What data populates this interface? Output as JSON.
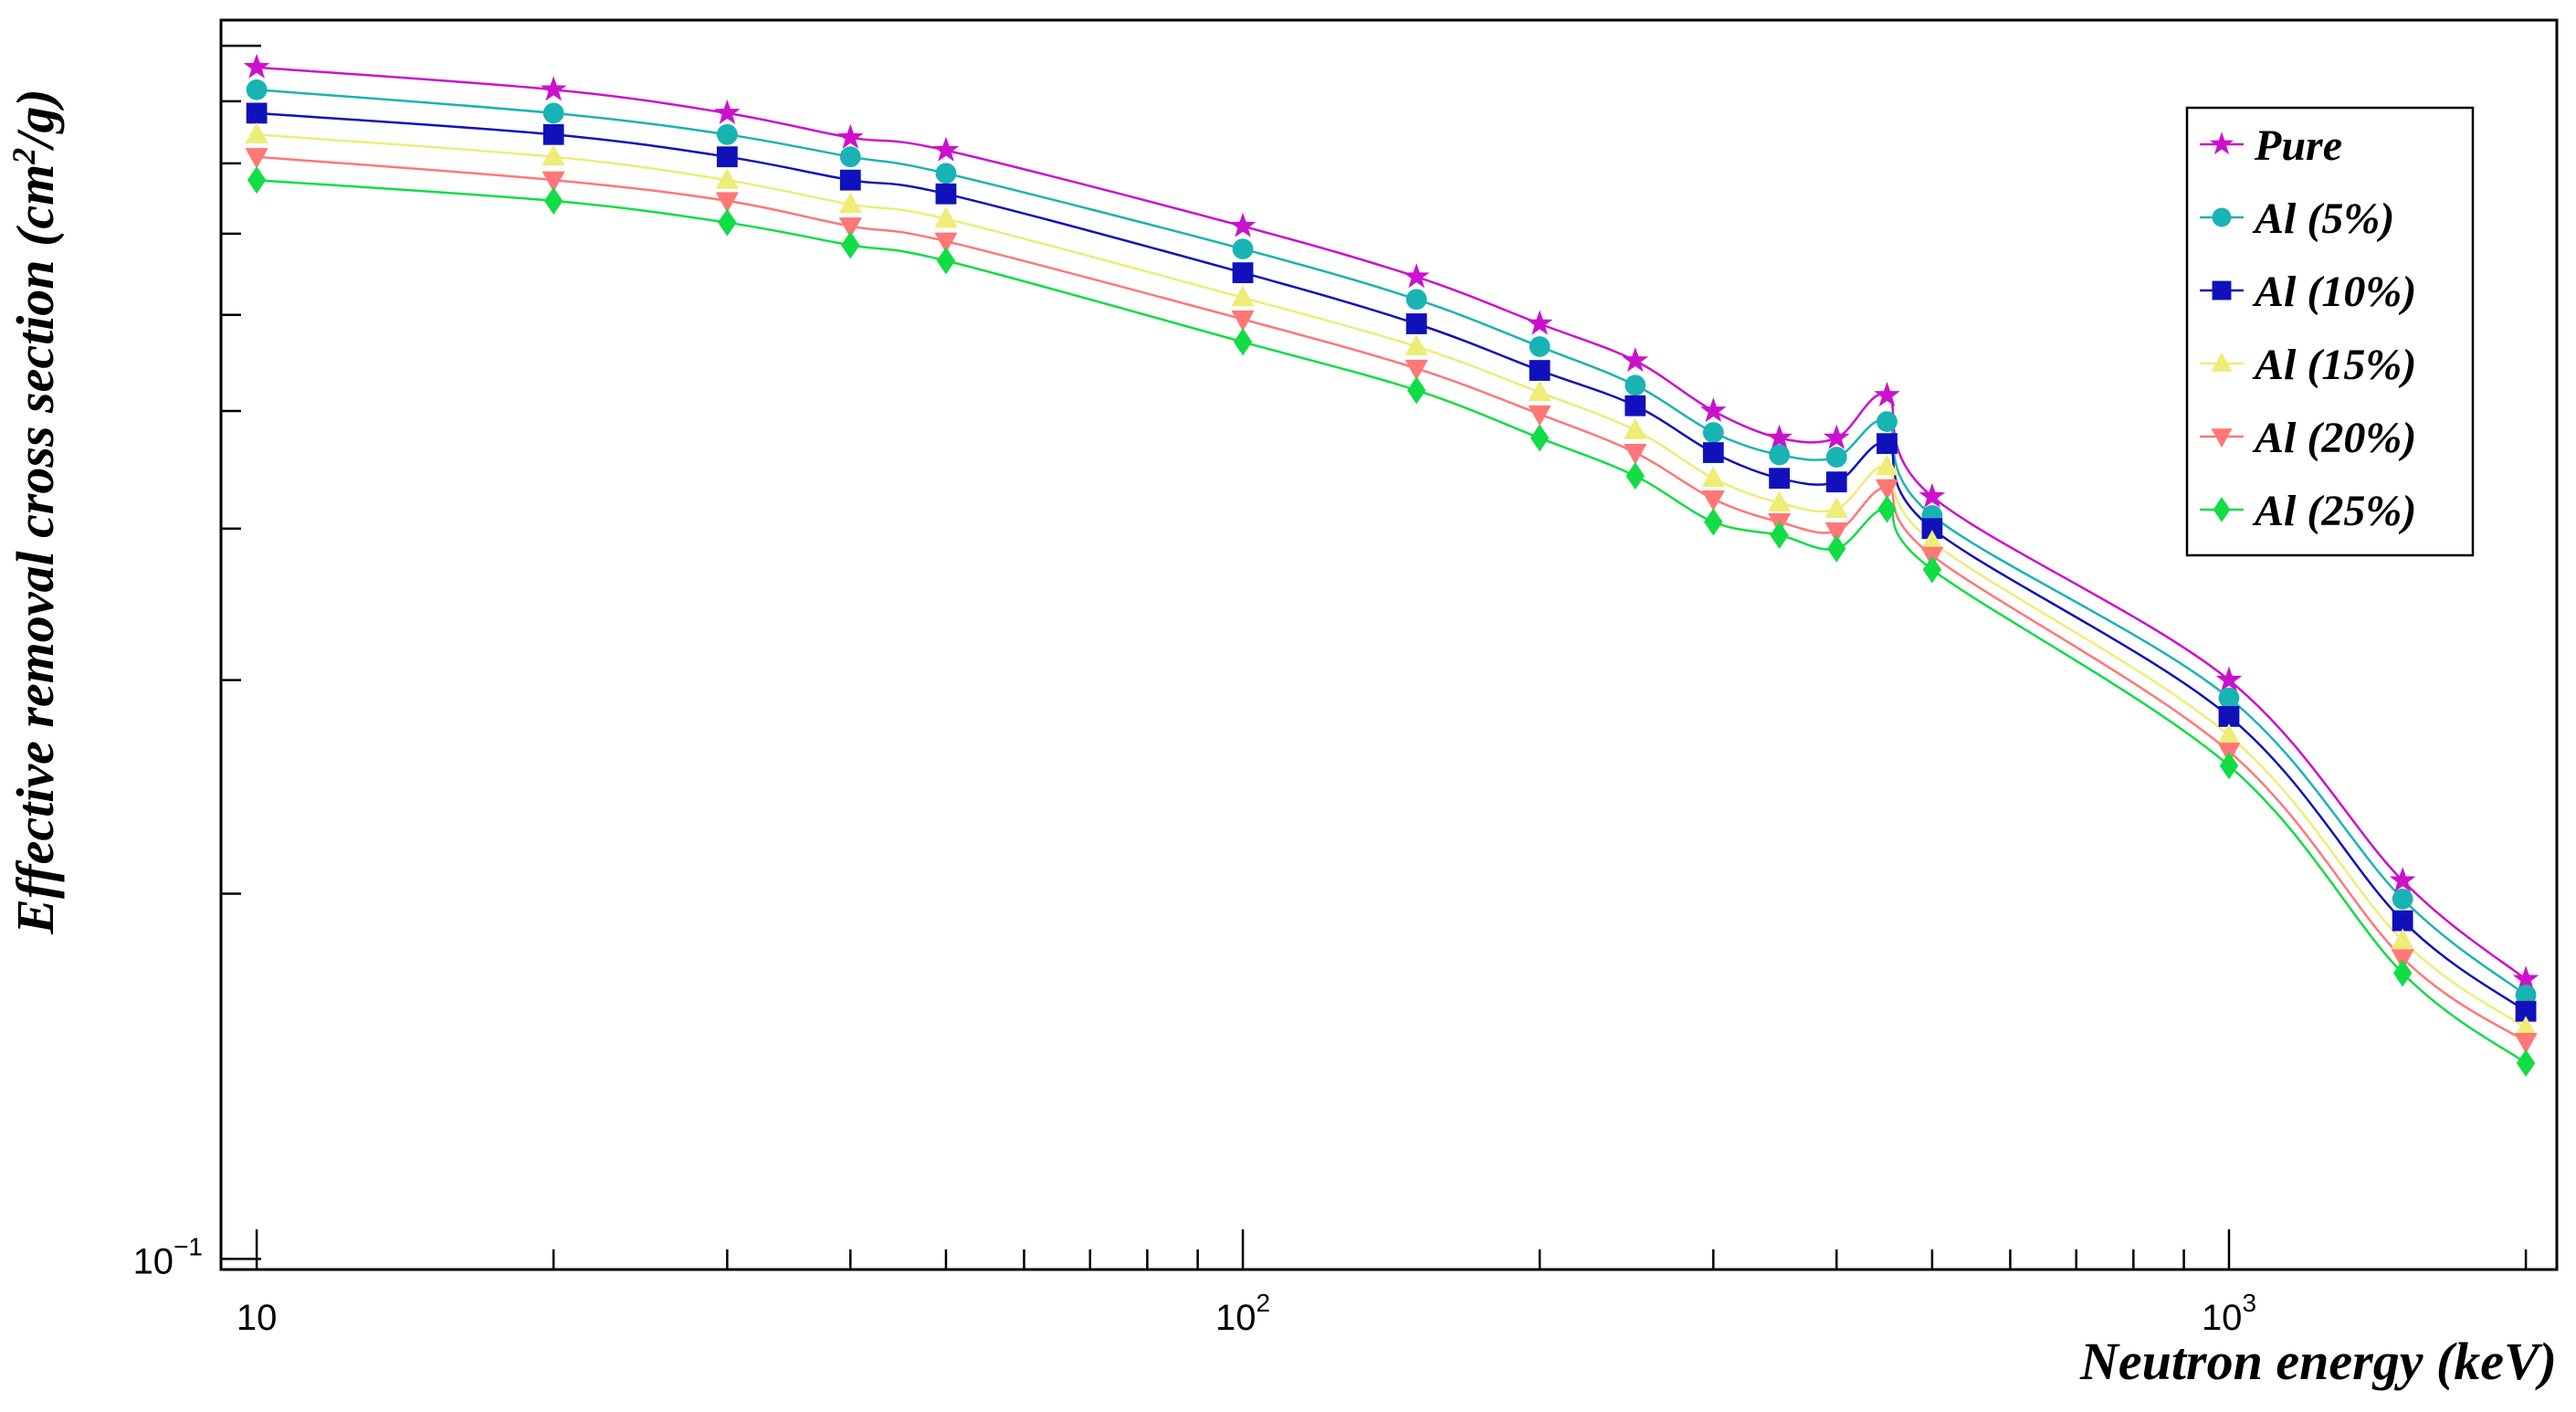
{
  "chart_data": {
    "type": "line",
    "x_scale": "log",
    "y_scale": "log",
    "xlabel": "Neutron energy (keV)",
    "ylabel": "Effective removal cross section (cm",
    "ylabel_sup": "2",
    "ylabel_tail": "/g)",
    "xlim": [
      9.2,
      2150
    ],
    "ylim": [
      0.098,
      1.05
    ],
    "x_ticks": [
      {
        "value": 10,
        "base": "10",
        "exp": ""
      },
      {
        "value": 100,
        "base": "10",
        "exp": "2"
      },
      {
        "value": 1000,
        "base": "10",
        "exp": "3"
      }
    ],
    "y_ticks": [
      {
        "value": 0.1,
        "base": "10",
        "exp": "−1"
      }
    ],
    "legend_position": "top-right",
    "x": [
      10,
      20,
      30,
      40,
      50,
      100,
      150,
      200,
      250,
      300,
      350,
      400,
      450,
      500,
      1000,
      1500,
      2000
    ],
    "series": [
      {
        "name": "Pure",
        "color": "#cc11cc",
        "marker": "star",
        "values": [
          0.96,
          0.92,
          0.88,
          0.84,
          0.82,
          0.71,
          0.645,
          0.59,
          0.55,
          0.5,
          0.475,
          0.475,
          0.515,
          0.425,
          0.3,
          0.205,
          0.17
        ]
      },
      {
        "name": "Al (5%)",
        "color": "#1ab3b3",
        "marker": "circle",
        "values": [
          0.92,
          0.88,
          0.845,
          0.81,
          0.785,
          0.68,
          0.618,
          0.565,
          0.525,
          0.48,
          0.46,
          0.458,
          0.49,
          0.41,
          0.29,
          0.198,
          0.165
        ]
      },
      {
        "name": "Al (10%)",
        "color": "#1111bb",
        "marker": "square",
        "values": [
          0.88,
          0.845,
          0.81,
          0.775,
          0.755,
          0.65,
          0.59,
          0.54,
          0.505,
          0.462,
          0.44,
          0.437,
          0.47,
          0.4,
          0.28,
          0.19,
          0.16
        ]
      },
      {
        "name": "Al (15%)",
        "color": "#eded77",
        "marker": "triangle-up",
        "values": [
          0.845,
          0.81,
          0.775,
          0.74,
          0.72,
          0.62,
          0.565,
          0.518,
          0.482,
          0.44,
          0.42,
          0.415,
          0.45,
          0.39,
          0.27,
          0.183,
          0.155
        ]
      },
      {
        "name": "Al (20%)",
        "color": "#ff7777",
        "marker": "triangle-down",
        "values": [
          0.81,
          0.775,
          0.745,
          0.71,
          0.69,
          0.595,
          0.542,
          0.497,
          0.462,
          0.423,
          0.405,
          0.398,
          0.432,
          0.38,
          0.262,
          0.177,
          0.151
        ]
      },
      {
        "name": "Al (25%)",
        "color": "#11dd44",
        "marker": "diamond",
        "values": [
          0.775,
          0.745,
          0.715,
          0.685,
          0.665,
          0.57,
          0.52,
          0.475,
          0.442,
          0.405,
          0.395,
          0.385,
          0.415,
          0.37,
          0.255,
          0.172,
          0.145
        ]
      }
    ]
  }
}
